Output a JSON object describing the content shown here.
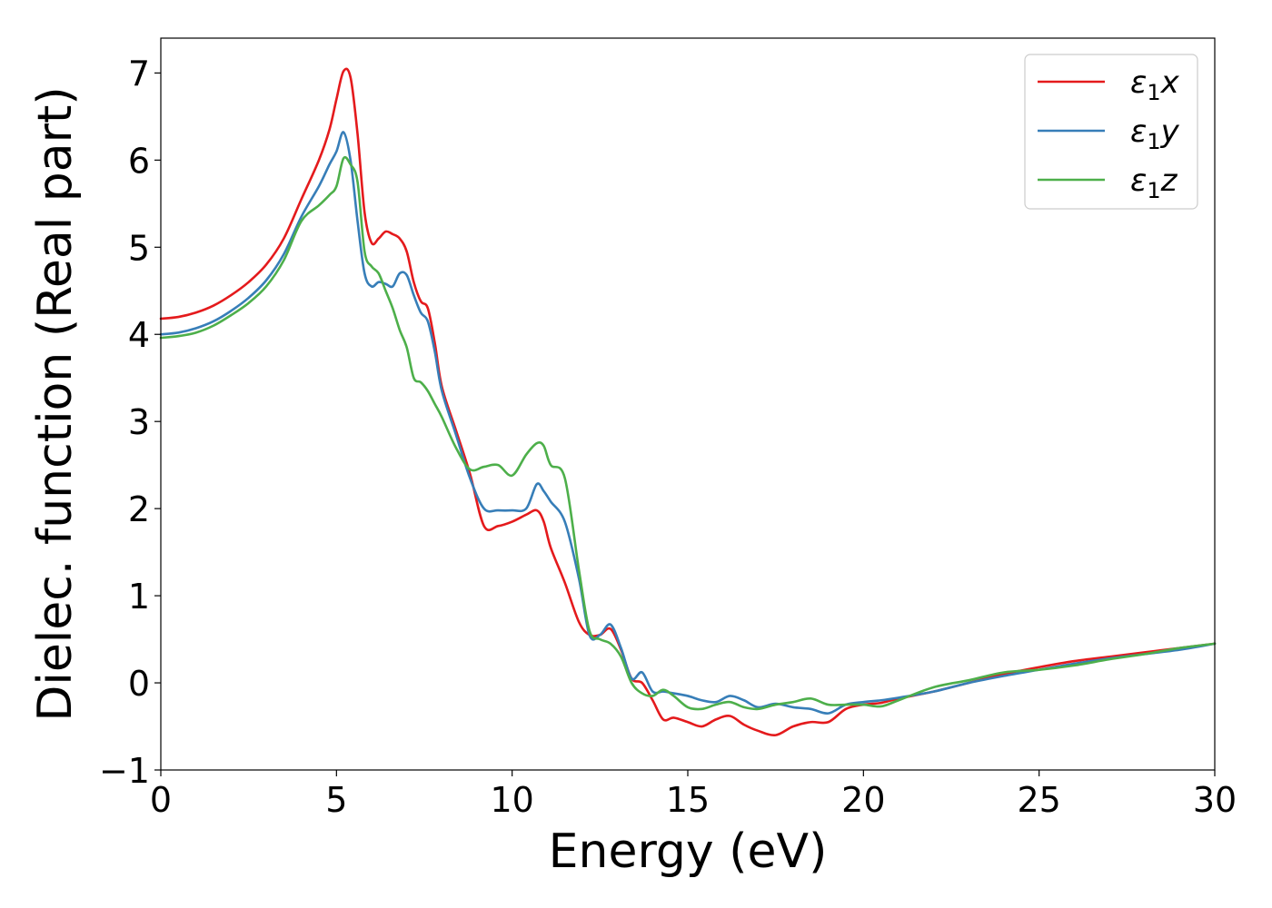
{
  "chart_data": {
    "type": "line",
    "xlabel": "Energy (eV)",
    "ylabel": "Dielec. function (Real part)",
    "xlim": [
      0,
      30
    ],
    "ylim": [
      -1,
      7.4
    ],
    "xticks": [
      0,
      5,
      10,
      15,
      20,
      25,
      30
    ],
    "yticks": [
      -1,
      0,
      1,
      2,
      3,
      4,
      5,
      6,
      7
    ],
    "xtick_labels": [
      "0",
      "5",
      "10",
      "15",
      "20",
      "25",
      "30"
    ],
    "ytick_labels": [
      "−1",
      "0",
      "1",
      "2",
      "3",
      "4",
      "5",
      "6",
      "7"
    ],
    "grid": false,
    "legend_position": "top-right",
    "series": [
      {
        "name": "ε1x",
        "label_main": "ε",
        "label_sub": "1",
        "label_suffix": "x",
        "color": "#e41a1c",
        "x": [
          0,
          0.5,
          1,
          1.5,
          2,
          2.5,
          3,
          3.5,
          4,
          4.5,
          4.8,
          5.0,
          5.2,
          5.4,
          5.6,
          5.8,
          6.0,
          6.2,
          6.4,
          6.6,
          6.8,
          7.0,
          7.2,
          7.4,
          7.6,
          7.8,
          8.0,
          8.4,
          8.8,
          9.2,
          9.6,
          10.0,
          10.4,
          10.7,
          10.9,
          11.1,
          11.5,
          11.9,
          12.2,
          12.5,
          12.8,
          13.1,
          13.4,
          13.7,
          14.0,
          14.3,
          14.6,
          15.0,
          15.4,
          15.8,
          16.2,
          16.6,
          17.0,
          17.5,
          18.0,
          18.5,
          19.0,
          19.5,
          20.0,
          20.5,
          21.0,
          22.0,
          23.0,
          24.0,
          25.0,
          26.0,
          27.0,
          28.0,
          29.0,
          30.0
        ],
        "values": [
          4.18,
          4.2,
          4.25,
          4.33,
          4.45,
          4.6,
          4.8,
          5.1,
          5.55,
          6.0,
          6.35,
          6.7,
          7.02,
          6.95,
          6.3,
          5.4,
          5.05,
          5.1,
          5.18,
          5.15,
          5.1,
          4.95,
          4.6,
          4.38,
          4.3,
          3.9,
          3.4,
          2.9,
          2.4,
          1.8,
          1.8,
          1.85,
          1.93,
          1.98,
          1.85,
          1.55,
          1.15,
          0.7,
          0.55,
          0.55,
          0.62,
          0.38,
          0.05,
          0.0,
          -0.2,
          -0.42,
          -0.4,
          -0.45,
          -0.5,
          -0.42,
          -0.38,
          -0.48,
          -0.55,
          -0.6,
          -0.5,
          -0.45,
          -0.45,
          -0.3,
          -0.25,
          -0.23,
          -0.18,
          -0.1,
          0.0,
          0.1,
          0.18,
          0.25,
          0.3,
          0.35,
          0.4,
          0.45
        ]
      },
      {
        "name": "ε1y",
        "label_main": "ε",
        "label_sub": "1",
        "label_suffix": "y",
        "color": "#377eb8",
        "x": [
          0,
          0.5,
          1,
          1.5,
          2,
          2.5,
          3,
          3.5,
          4,
          4.5,
          4.8,
          5.0,
          5.2,
          5.4,
          5.6,
          5.8,
          6.0,
          6.2,
          6.4,
          6.6,
          6.8,
          7.0,
          7.2,
          7.4,
          7.6,
          7.8,
          8.0,
          8.4,
          8.8,
          9.2,
          9.6,
          10.0,
          10.4,
          10.7,
          10.9,
          11.1,
          11.5,
          11.9,
          12.2,
          12.5,
          12.8,
          13.1,
          13.4,
          13.7,
          14.0,
          14.3,
          14.6,
          15.0,
          15.4,
          15.8,
          16.2,
          16.6,
          17.0,
          17.5,
          18.0,
          18.5,
          19.0,
          19.5,
          20.0,
          20.5,
          21.0,
          22.0,
          23.0,
          24.0,
          25.0,
          26.0,
          27.0,
          28.0,
          29.0,
          30.0
        ],
        "values": [
          4.0,
          4.02,
          4.07,
          4.15,
          4.27,
          4.42,
          4.62,
          4.92,
          5.35,
          5.7,
          5.95,
          6.1,
          6.32,
          6.0,
          5.3,
          4.7,
          4.55,
          4.6,
          4.58,
          4.55,
          4.7,
          4.68,
          4.45,
          4.25,
          4.15,
          3.8,
          3.35,
          2.85,
          2.35,
          2.0,
          1.98,
          1.98,
          2.0,
          2.28,
          2.2,
          2.08,
          1.85,
          1.2,
          0.55,
          0.55,
          0.67,
          0.4,
          0.05,
          0.12,
          -0.1,
          -0.1,
          -0.12,
          -0.15,
          -0.2,
          -0.22,
          -0.15,
          -0.2,
          -0.28,
          -0.24,
          -0.28,
          -0.3,
          -0.35,
          -0.25,
          -0.22,
          -0.2,
          -0.17,
          -0.1,
          0.0,
          0.08,
          0.15,
          0.22,
          0.28,
          0.33,
          0.38,
          0.45
        ]
      },
      {
        "name": "ε1z",
        "label_main": "ε",
        "label_sub": "1",
        "label_suffix": "z",
        "color": "#4daf4a",
        "x": [
          0,
          0.5,
          1,
          1.5,
          2,
          2.5,
          3,
          3.5,
          4,
          4.5,
          4.8,
          5.0,
          5.2,
          5.4,
          5.6,
          5.8,
          6.0,
          6.2,
          6.4,
          6.6,
          6.8,
          7.0,
          7.2,
          7.4,
          7.6,
          7.8,
          8.0,
          8.4,
          8.8,
          9.2,
          9.6,
          10.0,
          10.4,
          10.7,
          10.9,
          11.1,
          11.5,
          11.9,
          12.2,
          12.5,
          12.8,
          13.1,
          13.4,
          13.7,
          14.0,
          14.3,
          14.6,
          15.0,
          15.4,
          15.8,
          16.2,
          16.6,
          17.0,
          17.5,
          18.0,
          18.5,
          19.0,
          19.5,
          20.0,
          20.5,
          21.0,
          22.0,
          23.0,
          24.0,
          25.0,
          26.0,
          27.0,
          28.0,
          29.0,
          30.0
        ],
        "values": [
          3.96,
          3.98,
          4.02,
          4.1,
          4.22,
          4.36,
          4.55,
          4.85,
          5.3,
          5.48,
          5.6,
          5.7,
          6.02,
          5.95,
          5.75,
          4.95,
          4.78,
          4.7,
          4.5,
          4.3,
          4.05,
          3.85,
          3.5,
          3.45,
          3.35,
          3.2,
          3.05,
          2.7,
          2.45,
          2.48,
          2.5,
          2.38,
          2.62,
          2.75,
          2.72,
          2.5,
          2.35,
          1.3,
          0.6,
          0.5,
          0.45,
          0.3,
          0.0,
          -0.12,
          -0.15,
          -0.08,
          -0.15,
          -0.28,
          -0.3,
          -0.25,
          -0.22,
          -0.28,
          -0.3,
          -0.25,
          -0.22,
          -0.18,
          -0.25,
          -0.25,
          -0.25,
          -0.27,
          -0.2,
          -0.05,
          0.03,
          0.12,
          0.15,
          0.2,
          0.27,
          0.33,
          0.4,
          0.45
        ]
      }
    ]
  }
}
